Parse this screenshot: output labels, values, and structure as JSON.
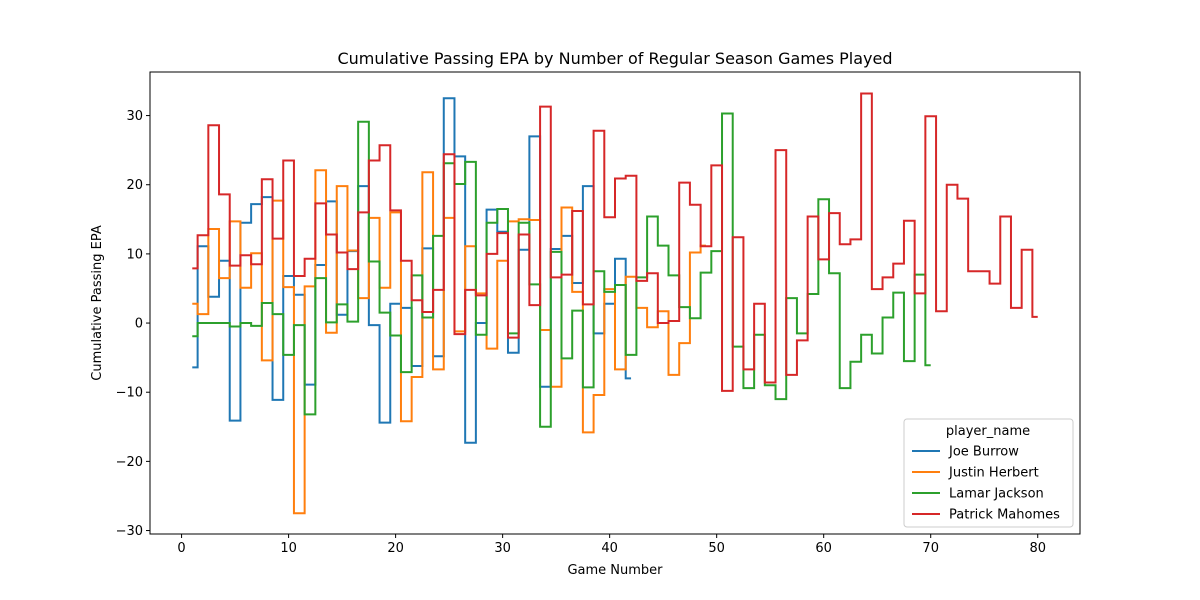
{
  "chart_data": {
    "type": "line",
    "drawstyle": "steps-mid",
    "title": "Cumulative Passing EPA by Number of Regular Season Games Played",
    "xlabel": "Game Number",
    "ylabel": "Cumulative Passing EPA",
    "xlim": [
      -2.95,
      83.95
    ],
    "ylim": [
      -30.5,
      36.3
    ],
    "xticks": [
      0,
      10,
      20,
      30,
      40,
      50,
      60,
      70,
      80
    ],
    "yticks": [
      -30,
      -20,
      -10,
      0,
      10,
      20,
      30
    ],
    "legend": {
      "title": "player_name",
      "position": "lower-right"
    },
    "series": [
      {
        "name": "Joe Burrow",
        "color": "#1f77b4",
        "x": [
          1,
          2,
          3,
          4,
          5,
          6,
          7,
          8,
          9,
          10,
          11,
          12,
          13,
          14,
          15,
          16,
          17,
          18,
          19,
          20,
          21,
          22,
          23,
          24,
          25,
          26,
          27,
          28,
          29,
          30,
          31,
          32,
          33,
          34,
          35,
          36,
          37,
          38,
          39,
          40,
          41,
          42
        ],
        "y": [
          -6.4,
          11.1,
          3.8,
          9.0,
          -14.1,
          14.5,
          17.2,
          18.2,
          -11.1,
          6.8,
          4.1,
          -8.9,
          8.4,
          17.6,
          1.2,
          10.4,
          19.8,
          -0.3,
          -14.4,
          2.8,
          2.2,
          -6.2,
          10.8,
          -4.8,
          32.5,
          24.1,
          -17.3,
          0.0,
          16.4,
          13.2,
          -4.3,
          10.6,
          27.0,
          -9.2,
          10.7,
          12.6,
          5.8,
          19.8,
          -1.5,
          2.8,
          9.3,
          -8.0
        ]
      },
      {
        "name": "Justin Herbert",
        "color": "#ff7f0e",
        "x": [
          1,
          2,
          3,
          4,
          5,
          6,
          7,
          8,
          9,
          10,
          11,
          12,
          13,
          14,
          15,
          16,
          17,
          18,
          19,
          20,
          21,
          22,
          23,
          24,
          25,
          26,
          27,
          28,
          29,
          30,
          31,
          32,
          33,
          34,
          35,
          36,
          37,
          38,
          39,
          40,
          41,
          42,
          43,
          44,
          45,
          46,
          47,
          48,
          49
        ],
        "y": [
          2.8,
          1.3,
          13.6,
          6.5,
          14.7,
          5.1,
          10.1,
          -5.4,
          17.7,
          5.2,
          -27.5,
          5.3,
          22.1,
          -1.4,
          19.8,
          10.5,
          3.6,
          15.2,
          5.1,
          16.0,
          -14.2,
          -7.8,
          21.8,
          -6.7,
          15.2,
          -1.2,
          11.1,
          4.3,
          -3.7,
          9.0,
          14.7,
          15.0,
          14.9,
          -1.0,
          -9.2,
          16.7,
          4.5,
          -15.8,
          -10.4,
          4.9,
          -6.7,
          6.7,
          2.2,
          -0.6,
          1.7,
          -7.5,
          -2.9,
          10.2,
          11.2
        ]
      },
      {
        "name": "Lamar Jackson",
        "color": "#2ca02c",
        "x": [
          1,
          2,
          3,
          4,
          5,
          6,
          7,
          8,
          9,
          10,
          11,
          12,
          13,
          14,
          15,
          16,
          17,
          18,
          19,
          20,
          21,
          22,
          23,
          24,
          25,
          26,
          27,
          28,
          29,
          30,
          31,
          32,
          33,
          34,
          35,
          36,
          37,
          38,
          39,
          40,
          41,
          42,
          43,
          44,
          45,
          46,
          47,
          48,
          49,
          50,
          51,
          52,
          53,
          54,
          55,
          56,
          57,
          58,
          59,
          60,
          61,
          62,
          63,
          64,
          65,
          66,
          67,
          68,
          69,
          70
        ],
        "y": [
          -1.9,
          0.0,
          0.0,
          0.0,
          -0.5,
          0.0,
          -0.4,
          2.9,
          1.3,
          -4.6,
          -0.3,
          -13.2,
          6.5,
          0.1,
          2.7,
          0.2,
          29.1,
          8.9,
          1.5,
          -1.8,
          -7.1,
          6.9,
          0.8,
          12.6,
          23.1,
          20.1,
          23.3,
          -1.7,
          14.5,
          16.5,
          -1.5,
          14.5,
          5.6,
          -15.0,
          10.3,
          -5.1,
          1.8,
          -9.3,
          7.5,
          4.5,
          5.5,
          -4.6,
          6.6,
          15.4,
          11.2,
          6.9,
          2.3,
          0.7,
          7.3,
          10.4,
          30.3,
          -3.4,
          -9.4,
          -1.7,
          -9.0,
          -11.0,
          3.6,
          -1.5,
          4.2,
          17.9,
          7.2,
          -9.4,
          -5.6,
          -1.7,
          -4.4,
          0.8,
          4.4,
          -5.5,
          7.0,
          -6.1
        ]
      },
      {
        "name": "Patrick Mahomes",
        "color": "#d62728",
        "x": [
          1,
          2,
          3,
          4,
          5,
          6,
          7,
          8,
          9,
          10,
          11,
          12,
          13,
          14,
          15,
          16,
          17,
          18,
          19,
          20,
          21,
          22,
          23,
          24,
          25,
          26,
          27,
          28,
          29,
          30,
          31,
          32,
          33,
          34,
          35,
          36,
          37,
          38,
          39,
          40,
          41,
          42,
          43,
          44,
          45,
          46,
          47,
          48,
          49,
          50,
          51,
          52,
          53,
          54,
          55,
          56,
          57,
          58,
          59,
          60,
          61,
          62,
          63,
          64,
          65,
          66,
          67,
          68,
          69,
          70,
          71,
          72,
          73,
          74,
          75,
          76,
          77,
          78,
          79,
          80
        ],
        "y": [
          7.9,
          12.7,
          28.6,
          18.6,
          8.3,
          9.8,
          8.5,
          20.8,
          12.2,
          23.5,
          6.8,
          9.3,
          17.3,
          12.8,
          10.2,
          7.8,
          16.0,
          23.5,
          25.7,
          16.3,
          9.0,
          3.3,
          1.6,
          4.8,
          24.4,
          -1.6,
          4.8,
          4.0,
          10.0,
          13.0,
          -2.1,
          12.8,
          2.6,
          31.3,
          6.6,
          7.0,
          16.2,
          2.7,
          27.8,
          15.3,
          20.9,
          21.3,
          6.1,
          7.2,
          0.0,
          0.3,
          20.3,
          17.1,
          11.1,
          22.8,
          -9.8,
          12.4,
          -6.7,
          2.8,
          -8.6,
          25.0,
          -7.5,
          -2.5,
          15.4,
          9.2,
          15.9,
          11.4,
          12.1,
          33.2,
          4.9,
          6.6,
          8.6,
          14.8,
          4.3,
          29.9,
          1.7,
          20.0,
          18.0,
          7.5,
          7.5,
          5.7,
          15.4,
          2.2,
          10.6,
          0.9
        ]
      }
    ]
  }
}
